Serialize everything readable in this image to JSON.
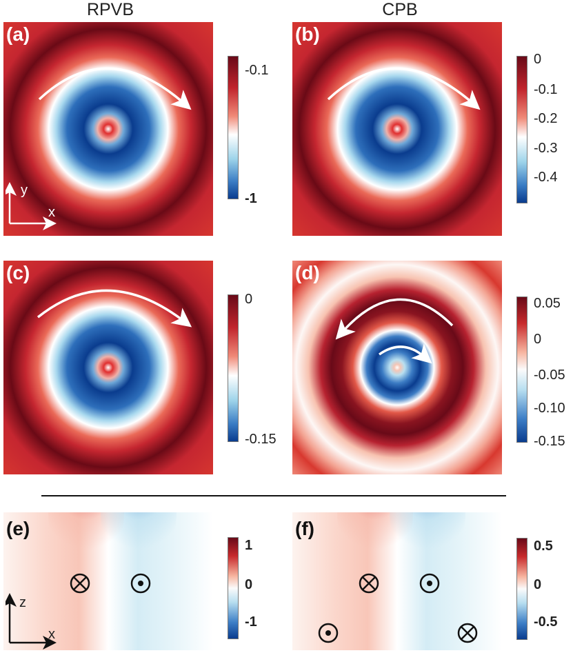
{
  "columns": {
    "left": "RPVB",
    "right": "CPB"
  },
  "panels": {
    "a": {
      "label": "(a)"
    },
    "b": {
      "label": "(b)"
    },
    "c": {
      "label": "(c)"
    },
    "d": {
      "label": "(d)"
    },
    "e": {
      "label": "(e)"
    },
    "f": {
      "label": "(f)"
    }
  },
  "colorbars": {
    "a": [
      "-0.1",
      "-1"
    ],
    "b": [
      "0",
      "-0.1",
      "-0.2",
      "-0.3",
      "-0.4"
    ],
    "c": [
      "0",
      "-0.15"
    ],
    "d": [
      "0.05",
      "0",
      "-0.05",
      "-0.10",
      "-0.15"
    ],
    "e": [
      "1",
      "0",
      "-1"
    ],
    "f": [
      "0.5",
      "0",
      "-0.5"
    ]
  },
  "axes": {
    "top": {
      "v": "y",
      "h": "x"
    },
    "bottom": {
      "v": "z",
      "h": "x"
    }
  },
  "colors": {
    "dark_red": "#690a18",
    "red": "#d73a34",
    "white": "#ffffff",
    "blue": "#0a3c8e",
    "light_blue": "#8fcbe6"
  }
}
